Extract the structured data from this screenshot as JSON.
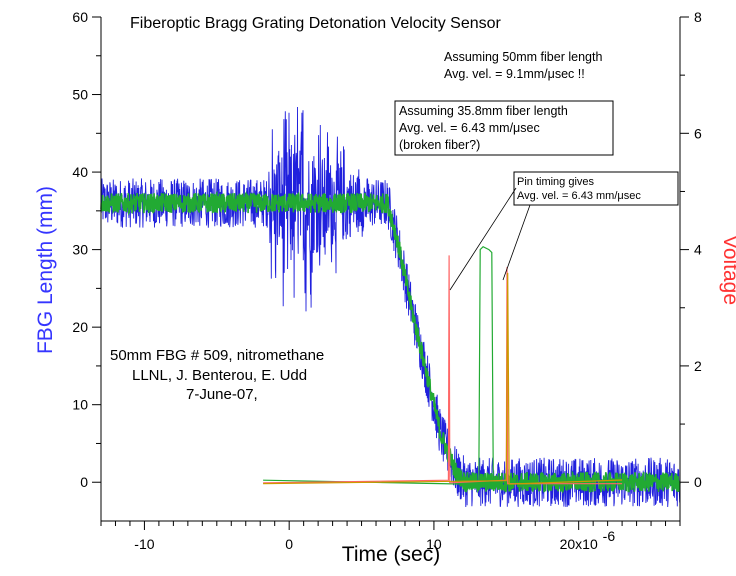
{
  "chart_data": {
    "type": "line",
    "title": "Fiberoptic Bragg Grating Detonation Velocity Sensor",
    "xlabel": "Time (sec)",
    "ylabel_left": "FBG Length (mm)",
    "ylabel_right": "Voltage",
    "x_range": [
      -13,
      27
    ],
    "y_left_range": [
      -5,
      60
    ],
    "y_right_range": [
      -0.667,
      8
    ],
    "x_ticks": [
      {
        "value": -10,
        "label": "-10"
      },
      {
        "value": 0,
        "label": "0"
      },
      {
        "value": 10,
        "label": "10"
      },
      {
        "value": 20,
        "label": "20x10"
      }
    ],
    "x_exponent": "-6",
    "y_left_ticks": [
      {
        "value": 0,
        "label": "0"
      },
      {
        "value": 10,
        "label": "10"
      },
      {
        "value": 20,
        "label": "20"
      },
      {
        "value": 30,
        "label": "30"
      },
      {
        "value": 40,
        "label": "40"
      },
      {
        "value": 50,
        "label": "50"
      },
      {
        "value": 60,
        "label": "60"
      }
    ],
    "y_right_ticks": [
      {
        "value": 0,
        "label": "0"
      },
      {
        "value": 2,
        "label": "2"
      },
      {
        "value": 4,
        "label": "4"
      },
      {
        "value": 6,
        "label": "6"
      },
      {
        "value": 8,
        "label": "8"
      }
    ],
    "series": [
      {
        "color": "#2020dd",
        "axis": "left",
        "x": [
          -13,
          0,
          6.8,
          7.5,
          8.5,
          9.5,
          10.5,
          11.6,
          12.2,
          27
        ],
        "y": [
          36,
          36,
          36,
          31,
          22,
          14,
          6,
          1,
          0,
          0
        ]
      },
      {
        "color": "#22aa33",
        "axis": "left",
        "x": [
          -13,
          6.8,
          7.5,
          8.5,
          9.5,
          10.5,
          11.6,
          12.2,
          27
        ],
        "y": [
          36,
          36,
          31,
          22,
          14,
          6,
          1,
          0,
          0
        ]
      },
      {
        "color": "#22aa33",
        "axis": "right",
        "x": [
          -1.8,
          13.1,
          13.2,
          13.4,
          13.8,
          14.0,
          14.1,
          23
        ],
        "y": [
          0,
          0,
          4.0,
          4.05,
          4.0,
          3.95,
          0,
          0
        ]
      },
      {
        "color": "#ff6666",
        "axis": "right",
        "x": [
          -1.8,
          11.0,
          11.05,
          11.1,
          15.0,
          15.05,
          15.1,
          23
        ],
        "y": [
          0,
          0,
          3.9,
          0,
          0,
          3.7,
          0,
          0
        ]
      },
      {
        "color": "#cc9900",
        "axis": "right",
        "x": [
          -1.8,
          15.0,
          15.1,
          15.2,
          23
        ],
        "y": [
          0,
          0,
          3.6,
          0,
          0
        ]
      }
    ],
    "annotations": {
      "a50_line1": "Assuming 50mm fiber length",
      "a50_line2": "Avg. vel. = 9.1mm/μsec !!",
      "a358_line1": "Assuming 35.8mm fiber length",
      "a358_line2": "Avg. vel. = 6.43 mm/μsec",
      "a358_line3": "(broken fiber?)",
      "pin_line1": "Pin timing gives",
      "pin_line2": "Avg. vel. = 6.43 mm/μsec",
      "info_line1": "50mm FBG # 509, nitromethane",
      "info_line2": "LLNL, J. Benterou, E. Udd",
      "info_line3": "7-June-07,"
    }
  }
}
